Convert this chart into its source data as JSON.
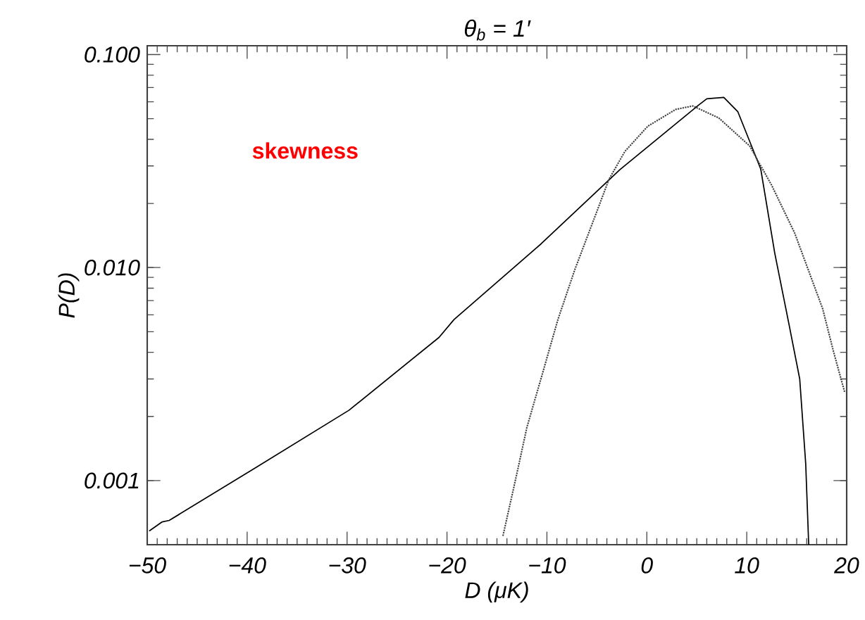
{
  "chart_data": {
    "type": "line",
    "title": "θ$_{b}$ = 1′",
    "xlabel": "D (μK)",
    "ylabel": "P(D)",
    "log": "y",
    "grid": false,
    "marker": "none",
    "xlim": [
      -50,
      20
    ],
    "ylim": [
      0.0005,
      0.11
    ],
    "xticks": [
      {
        "value": -50,
        "label": "−50"
      },
      {
        "value": -40,
        "label": "−40"
      },
      {
        "value": -30,
        "label": "−30"
      },
      {
        "value": -20,
        "label": "−20"
      },
      {
        "value": -10,
        "label": "−10"
      },
      0,
      10,
      20
    ],
    "yticks": [
      {
        "value": 0.001,
        "label": "0.001"
      },
      {
        "value": 0.01,
        "label": "0.010"
      },
      {
        "value": 0.1,
        "label": "0.100"
      }
    ],
    "annotations": [
      "skewness"
    ],
    "series": [
      {
        "color": "#000000",
        "line_style": "solid",
        "x": [
          -49.8,
          -48.5,
          -47.8,
          -39.4,
          -29.8,
          -20.8,
          -19.3,
          -10.6,
          -2.7,
          5.2,
          6.0,
          7.7,
          9.1,
          10.5,
          11.4,
          12.8,
          14.2,
          15.3,
          15.9,
          16.2
        ],
        "values": [
          0.00058,
          0.00064,
          0.00065,
          0.00113,
          0.00214,
          0.0047,
          0.0057,
          0.0129,
          0.0288,
          0.058,
          0.062,
          0.063,
          0.054,
          0.037,
          0.029,
          0.0117,
          0.0055,
          0.003,
          0.0012,
          0.0005
        ]
      },
      {
        "color": "#404040",
        "line_style": "dotted",
        "x": [
          -14.4,
          -13.1,
          -12.0,
          -10.6,
          -8.9,
          -7.2,
          -5.5,
          -3.8,
          -2.2,
          0.1,
          2.9,
          4.6,
          7.2,
          10.3,
          12.5,
          14.8,
          17.6,
          18.7,
          19.8
        ],
        "values": [
          0.00055,
          0.00103,
          0.00178,
          0.003,
          0.0057,
          0.0098,
          0.0159,
          0.0259,
          0.0351,
          0.0461,
          0.0553,
          0.0574,
          0.0504,
          0.0372,
          0.0243,
          0.0145,
          0.0064,
          0.004,
          0.0026
        ]
      }
    ]
  }
}
